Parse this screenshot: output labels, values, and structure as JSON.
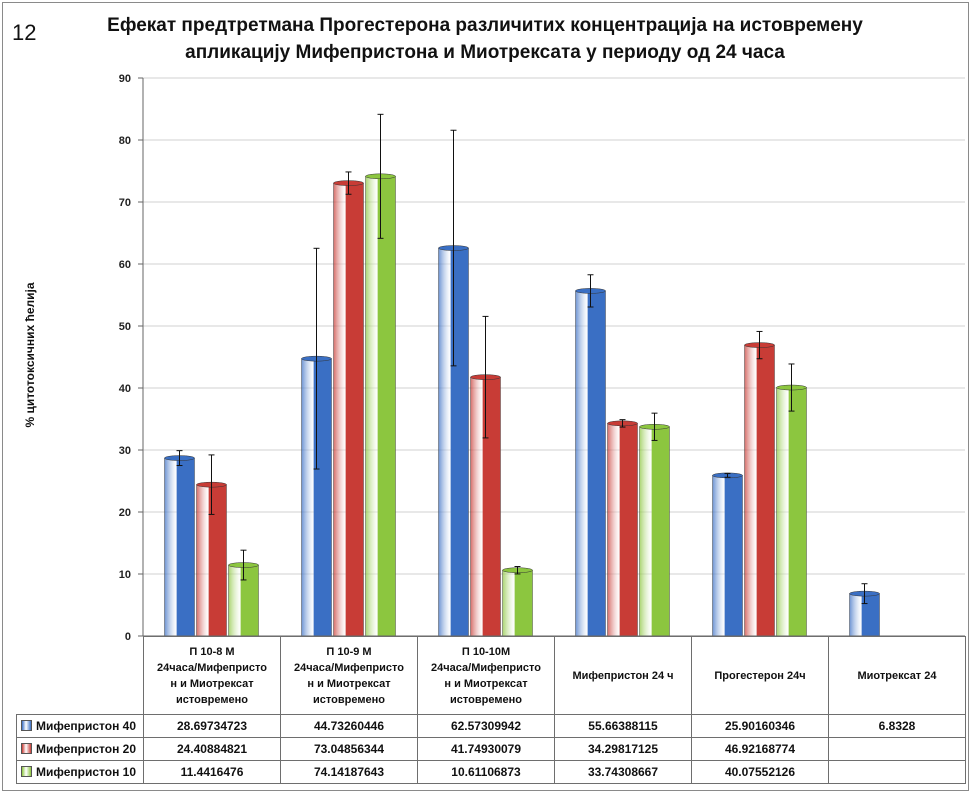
{
  "figure_number": "12",
  "chart_data": {
    "type": "bar",
    "title_line1": "Ефекат предтретмана Прогестерона различитих концентрација на истовремену",
    "title_line2": "апликацију Мифепристона и Миотрексата у периоду од 24 часа",
    "ylabel": "% цитотоксичних ћелија",
    "ylim": [
      0,
      90
    ],
    "yticks": [
      "0",
      "10",
      "20",
      "30",
      "40",
      "50",
      "60",
      "70",
      "80",
      "90"
    ],
    "categories": [
      [
        "П 10-8 М",
        "24часа/Мифепристо",
        "н и Миотрексат",
        "истовремено"
      ],
      [
        "П 10-9 М",
        "24часа/Мифепристо",
        "н и Миотрексат",
        "истовремено"
      ],
      [
        "П 10-10М",
        "24часа/Мифепристо",
        "н и Миотрексат",
        "истовремено"
      ],
      [
        "Мифепристон 24 ч"
      ],
      [
        "Прогестерон 24ч"
      ],
      [
        "Миотрексат 24"
      ]
    ],
    "series": [
      {
        "name": "Мифепристон 40",
        "color": "#3a6fc4",
        "values": [
          28.69734723,
          44.73260446,
          62.57309942,
          55.66388115,
          25.90160346,
          6.8328
        ],
        "labels": [
          "28.69734723",
          "44.73260446",
          "62.57309942",
          "55.66388115",
          "25.90160346",
          "6.8328"
        ],
        "errors": [
          1.2,
          17.8,
          19.0,
          2.6,
          0.3,
          1.6
        ]
      },
      {
        "name": "Мифепристон 20",
        "color": "#c83c36",
        "values": [
          24.40884821,
          73.04856344,
          41.74930079,
          34.29817125,
          46.92168774,
          null
        ],
        "labels": [
          "24.40884821",
          "73.04856344",
          "41.74930079",
          "34.29817125",
          "46.92168774",
          ""
        ],
        "errors": [
          4.8,
          1.8,
          9.8,
          0.6,
          2.2,
          null
        ]
      },
      {
        "name": "Мифепристон 10",
        "color": "#8cc63f",
        "values": [
          11.4416476,
          74.14187643,
          10.61106873,
          33.74308667,
          40.07552126,
          null
        ],
        "labels": [
          "11.4416476",
          "74.14187643",
          "10.61106873",
          "33.74308667",
          "40.07552126",
          ""
        ],
        "errors": [
          2.4,
          10.0,
          0.6,
          2.2,
          3.8,
          null
        ]
      }
    ]
  }
}
